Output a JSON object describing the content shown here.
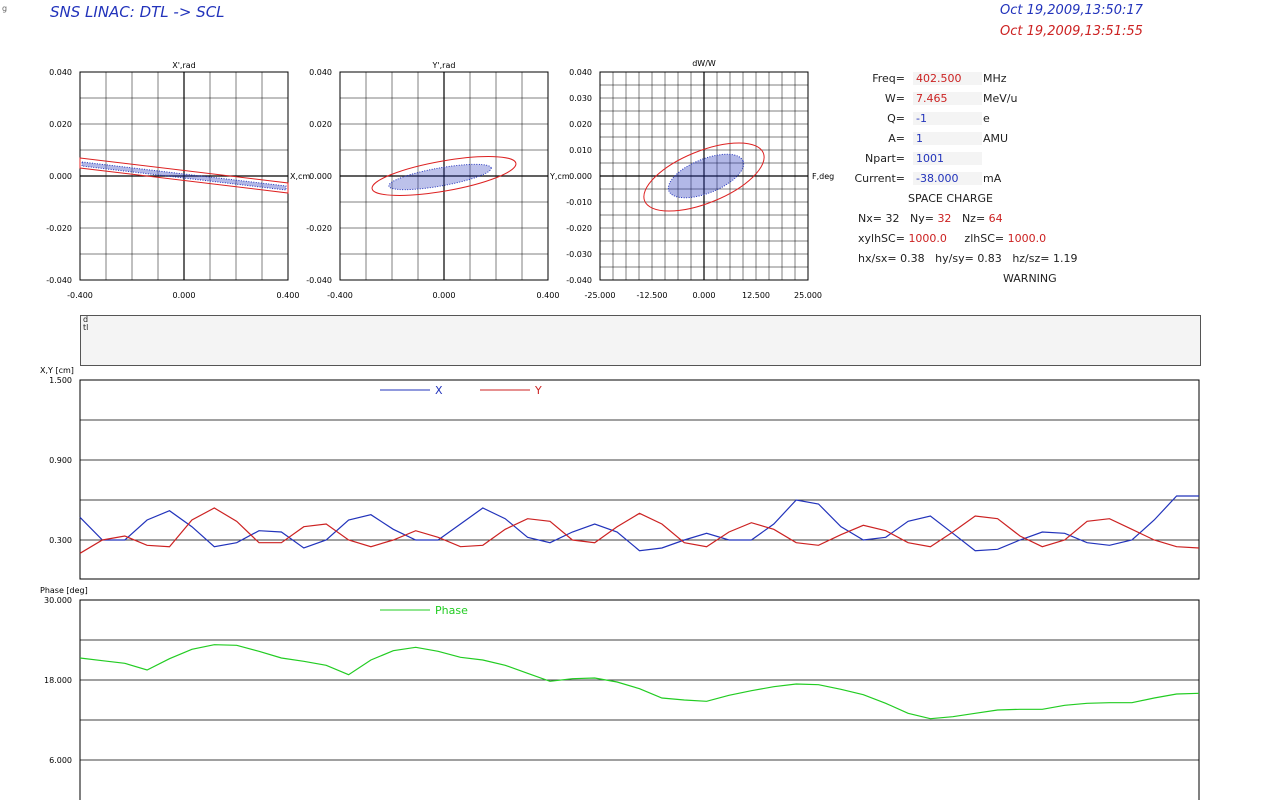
{
  "header": {
    "title": "SNS LINAC: DTL -> SCL",
    "timestamp_1": "Oct 19,2009,13:50:17",
    "timestamp_2": "Oct 19,2009,13:51:55",
    "corner_mark": "g"
  },
  "colors": {
    "blue": "#2233bb",
    "red": "#cc2222",
    "green": "#22cc22",
    "grid": "#000000"
  },
  "phase_plots": [
    {
      "id": "x",
      "title": "X',rad",
      "axis_label": "X,cm",
      "x_ticks": [
        "-0.400",
        "0.000",
        "0.400"
      ],
      "y_ticks": [
        "0.040",
        "0.020",
        "0.000",
        "-0.020",
        "-0.040"
      ],
      "xlim": [
        -0.4,
        0.4
      ],
      "ylim": [
        -0.04,
        0.04
      ]
    },
    {
      "id": "y",
      "title": "Y',rad",
      "axis_label": "Y,cm",
      "x_ticks": [
        "-0.400",
        "0.000",
        "0.400"
      ],
      "y_ticks": [
        "0.040",
        "0.020",
        "0.000",
        "-0.020",
        "-0.040"
      ],
      "xlim": [
        -0.4,
        0.4
      ],
      "ylim": [
        -0.04,
        0.04
      ]
    },
    {
      "id": "z",
      "title": "dW/W",
      "axis_label": "F,deg",
      "x_ticks": [
        "-25.000",
        "-12.500",
        "0.000",
        "12.500",
        "25.000"
      ],
      "y_ticks": [
        "0.040",
        "0.030",
        "0.020",
        "0.010",
        "0.000",
        "-0.010",
        "-0.020",
        "-0.030",
        "-0.040"
      ],
      "xlim": [
        -25,
        25
      ],
      "ylim": [
        -0.04,
        0.04
      ]
    }
  ],
  "params": [
    {
      "label": "Freq=",
      "value": "402.500",
      "unit": "MHz",
      "color": "red"
    },
    {
      "label": "W=",
      "value": "7.465",
      "unit": "MeV/u",
      "color": "red"
    },
    {
      "label": "Q=",
      "value": "-1",
      "unit": "e",
      "color": "blue"
    },
    {
      "label": "A=",
      "value": "1",
      "unit": "AMU",
      "color": "blue"
    },
    {
      "label": "Npart=",
      "value": "1001",
      "unit": "",
      "color": "blue"
    },
    {
      "label": "Current=",
      "value": "-38.000",
      "unit": "mA",
      "color": "blue"
    }
  ],
  "space_charge": {
    "heading": "SPACE CHARGE",
    "nx_label": "Nx=",
    "nx": "32",
    "ny_label": "Ny=",
    "ny": "32",
    "nz_label": "Nz=",
    "nz": "64",
    "xylhsc_label": "xylhSC=",
    "xylhsc": "1000.0",
    "zlhsc_label": "zlhSC=",
    "zlhsc": "1000.0",
    "hxsx_label": "hx/sx=",
    "hxsx": "0.38",
    "hysy_label": "hy/sy=",
    "hysy": "0.83",
    "hzsz_label": "hz/sz=",
    "hzsz": "1.19",
    "warning": "WARNING"
  },
  "dtl_box": {
    "label": "dtl"
  },
  "envelope_chart": {
    "ylabel": "X,Y [cm]",
    "y_ticks": [
      "1.500",
      "0.900",
      "0.300"
    ]
  },
  "phase_chart": {
    "ylabel": "Phase [deg]",
    "y_ticks": [
      "30.000",
      "18.000",
      "6.000"
    ]
  },
  "chart_data": [
    {
      "type": "line",
      "ylabel": "X,Y [cm]",
      "ylim": [
        0.0,
        1.5
      ],
      "x": [
        0,
        0.02,
        0.04,
        0.06,
        0.08,
        0.1,
        0.12,
        0.14,
        0.16,
        0.18,
        0.2,
        0.22,
        0.24,
        0.26,
        0.28,
        0.3,
        0.32,
        0.34,
        0.36,
        0.38,
        0.4,
        0.42,
        0.44,
        0.46,
        0.48,
        0.5,
        0.52,
        0.54,
        0.56,
        0.58,
        0.6,
        0.62,
        0.64,
        0.66,
        0.68,
        0.7,
        0.72,
        0.74,
        0.76,
        0.78,
        0.8,
        0.82,
        0.84,
        0.86,
        0.88,
        0.9,
        0.92,
        0.94,
        0.96,
        0.98,
        1.0
      ],
      "series": [
        {
          "name": "X",
          "color": "#2233bb",
          "values": [
            0.47,
            0.3,
            0.3,
            0.45,
            0.52,
            0.4,
            0.25,
            0.28,
            0.37,
            0.36,
            0.24,
            0.3,
            0.45,
            0.49,
            0.38,
            0.3,
            0.3,
            0.42,
            0.54,
            0.46,
            0.32,
            0.28,
            0.36,
            0.42,
            0.36,
            0.22,
            0.24,
            0.3,
            0.35,
            0.3,
            0.3,
            0.42,
            0.6,
            0.57,
            0.4,
            0.3,
            0.32,
            0.44,
            0.48,
            0.35,
            0.22,
            0.23,
            0.3,
            0.36,
            0.35,
            0.28,
            0.26,
            0.3,
            0.45,
            0.63,
            0.63
          ]
        },
        {
          "name": "Y",
          "color": "#cc2222",
          "values": [
            0.2,
            0.3,
            0.33,
            0.26,
            0.25,
            0.45,
            0.54,
            0.44,
            0.28,
            0.28,
            0.4,
            0.42,
            0.3,
            0.25,
            0.3,
            0.37,
            0.32,
            0.25,
            0.26,
            0.38,
            0.46,
            0.44,
            0.3,
            0.28,
            0.4,
            0.5,
            0.42,
            0.28,
            0.25,
            0.36,
            0.43,
            0.38,
            0.28,
            0.26,
            0.34,
            0.41,
            0.37,
            0.28,
            0.25,
            0.36,
            0.48,
            0.46,
            0.33,
            0.25,
            0.3,
            0.44,
            0.46,
            0.38,
            0.3,
            0.25,
            0.24
          ]
        }
      ]
    },
    {
      "type": "line",
      "ylabel": "Phase [deg]",
      "ylim": [
        0.0,
        30.0
      ],
      "x": [
        0,
        0.02,
        0.04,
        0.06,
        0.08,
        0.1,
        0.12,
        0.14,
        0.16,
        0.18,
        0.2,
        0.22,
        0.24,
        0.26,
        0.28,
        0.3,
        0.32,
        0.34,
        0.36,
        0.38,
        0.4,
        0.42,
        0.44,
        0.46,
        0.48,
        0.5,
        0.52,
        0.54,
        0.56,
        0.58,
        0.6,
        0.62,
        0.64,
        0.66,
        0.68,
        0.7,
        0.72,
        0.74,
        0.76,
        0.78,
        0.8,
        0.82,
        0.84,
        0.86,
        0.88,
        0.9,
        0.92,
        0.94,
        0.96,
        0.98,
        1.0
      ],
      "series": [
        {
          "name": "Phase",
          "color": "#22cc22",
          "values": [
            21.3,
            20.9,
            20.5,
            19.5,
            21.2,
            22.6,
            23.3,
            23.2,
            22.3,
            21.3,
            20.8,
            20.2,
            18.8,
            21.0,
            22.4,
            22.9,
            22.3,
            21.4,
            21.0,
            20.2,
            19.0,
            17.8,
            18.2,
            18.3,
            17.7,
            16.7,
            15.3,
            15.0,
            14.8,
            15.7,
            16.4,
            17.0,
            17.4,
            17.3,
            16.6,
            15.8,
            14.5,
            13.0,
            12.2,
            12.5,
            13.0,
            13.5,
            13.6,
            13.6,
            14.2,
            14.5,
            14.6,
            14.6,
            15.3,
            15.9,
            16.0
          ]
        }
      ]
    }
  ]
}
